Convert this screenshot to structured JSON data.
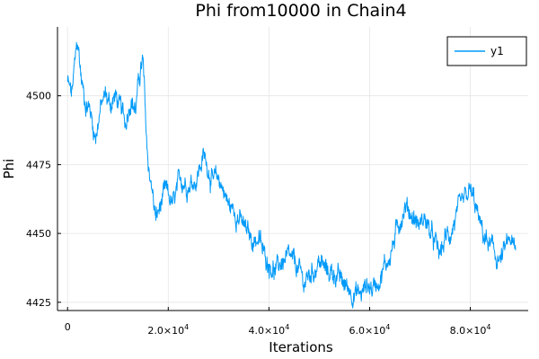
{
  "chart_data": {
    "type": "line",
    "title": "Phi from10000 in Chain4",
    "xlabel": "Iterations",
    "ylabel": "Phi",
    "xlim": [
      -2000,
      91500
    ],
    "ylim": [
      4422,
      4525
    ],
    "grid": true,
    "legend_placement": "top-right",
    "x_ticks": [
      {
        "value": 0,
        "label": "0"
      },
      {
        "value": 20000,
        "base": "2.0×10",
        "exp": "4"
      },
      {
        "value": 40000,
        "base": "4.0×10",
        "exp": "4"
      },
      {
        "value": 60000,
        "base": "6.0×10",
        "exp": "4"
      },
      {
        "value": 80000,
        "base": "8.0×10",
        "exp": "4"
      }
    ],
    "y_ticks": [
      4425,
      4450,
      4475,
      4500
    ],
    "series": [
      {
        "name": "y1",
        "color": "#009af9",
        "x_range": [
          0,
          89000
        ],
        "anchors": [
          [
            0,
            4505
          ],
          [
            800,
            4500
          ],
          [
            1500,
            4512
          ],
          [
            2000,
            4520
          ],
          [
            2800,
            4505
          ],
          [
            3500,
            4498
          ],
          [
            4500,
            4495
          ],
          [
            5500,
            4485
          ],
          [
            6500,
            4495
          ],
          [
            7500,
            4500
          ],
          [
            8500,
            4497
          ],
          [
            9500,
            4500
          ],
          [
            10500,
            4495
          ],
          [
            11500,
            4490
          ],
          [
            12500,
            4500
          ],
          [
            13500,
            4495
          ],
          [
            14500,
            4510
          ],
          [
            15000,
            4512
          ],
          [
            15500,
            4490
          ],
          [
            16000,
            4475
          ],
          [
            16500,
            4470
          ],
          [
            17500,
            4455
          ],
          [
            18500,
            4460
          ],
          [
            19500,
            4465
          ],
          [
            21000,
            4460
          ],
          [
            22500,
            4470
          ],
          [
            24000,
            4468
          ],
          [
            25500,
            4470
          ],
          [
            27000,
            4478
          ],
          [
            28000,
            4474
          ],
          [
            29000,
            4468
          ],
          [
            30000,
            4470
          ],
          [
            31000,
            4466
          ],
          [
            32000,
            4460
          ],
          [
            33500,
            4458
          ],
          [
            35000,
            4452
          ],
          [
            36500,
            4448
          ],
          [
            38000,
            4448
          ],
          [
            39000,
            4442
          ],
          [
            40000,
            4440
          ],
          [
            41500,
            4436
          ],
          [
            42500,
            4440
          ],
          [
            44000,
            4440
          ],
          [
            45500,
            4438
          ],
          [
            47000,
            4432
          ],
          [
            48500,
            4436
          ],
          [
            50000,
            4440
          ],
          [
            51500,
            4436
          ],
          [
            53000,
            4436
          ],
          [
            54500,
            4432
          ],
          [
            56000,
            4430
          ],
          [
            57500,
            4428
          ],
          [
            58500,
            4428
          ],
          [
            59500,
            4432
          ],
          [
            60500,
            4430
          ],
          [
            61500,
            4433
          ],
          [
            62500,
            4436
          ],
          [
            63500,
            4440
          ],
          [
            64000,
            4442
          ],
          [
            65000,
            4448
          ],
          [
            66000,
            4455
          ],
          [
            67000,
            4460
          ],
          [
            68000,
            4458
          ],
          [
            69000,
            4455
          ],
          [
            70000,
            4453
          ],
          [
            71000,
            4456
          ],
          [
            72000,
            4450
          ],
          [
            73000,
            4446
          ],
          [
            74000,
            4442
          ],
          [
            75000,
            4448
          ],
          [
            76000,
            4450
          ],
          [
            77000,
            4455
          ],
          [
            78000,
            4458
          ],
          [
            79000,
            4462
          ],
          [
            80000,
            4465
          ],
          [
            81000,
            4460
          ],
          [
            82000,
            4452
          ],
          [
            83000,
            4448
          ],
          [
            84000,
            4445
          ],
          [
            85000,
            4442
          ],
          [
            86000,
            4440
          ],
          [
            87000,
            4444
          ],
          [
            88000,
            4448
          ],
          [
            89000,
            4442
          ]
        ]
      }
    ]
  }
}
